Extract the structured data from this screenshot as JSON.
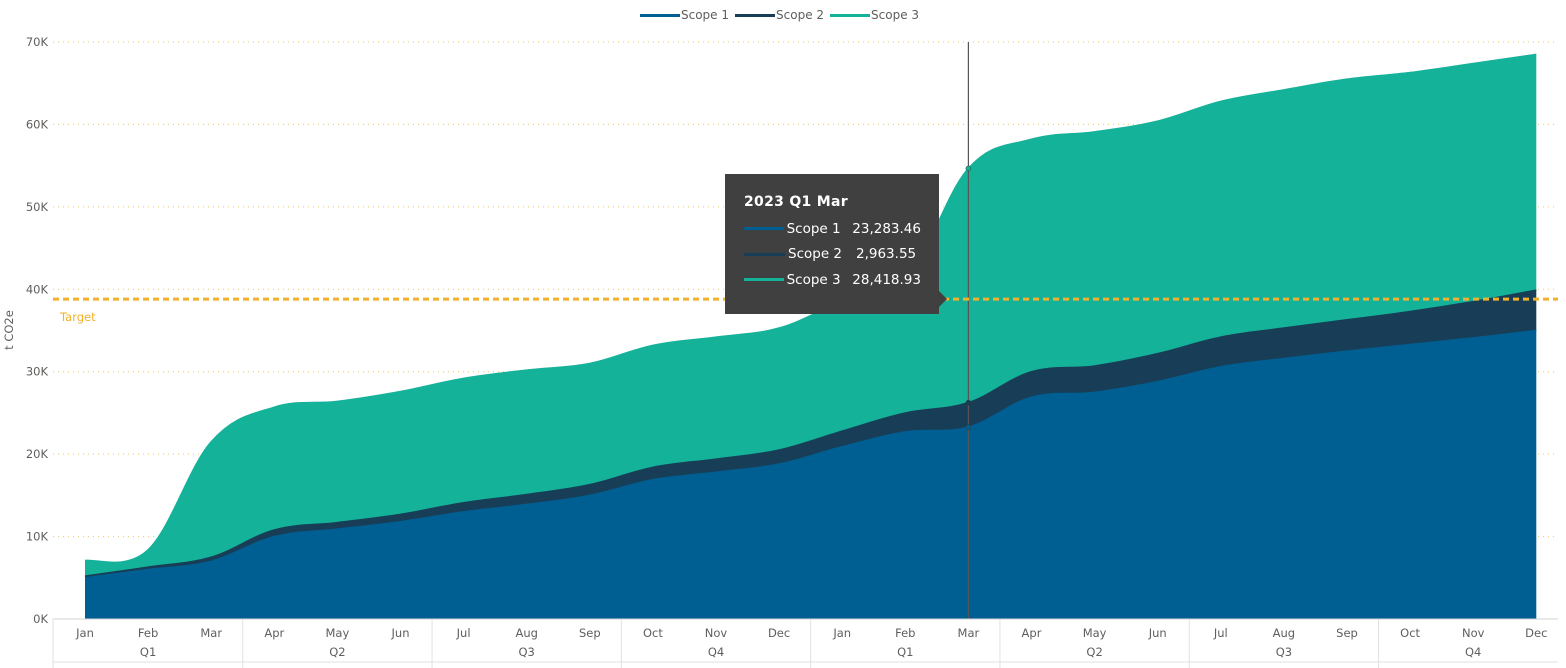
{
  "legend": [
    {
      "label": "Scope 1",
      "color": "#005f92"
    },
    {
      "label": "Scope 2",
      "color": "#173e56"
    },
    {
      "label": "Scope 3",
      "color": "#15b29a"
    }
  ],
  "tooltip": {
    "title": "2023 Q1 Mar",
    "rows": [
      {
        "name": "Scope 1",
        "value": "23,283.46",
        "color": "#005f92"
      },
      {
        "name": "Scope 2",
        "value": "2,963.55",
        "color": "#173e56"
      },
      {
        "name": "Scope 3",
        "value": "28,418.93",
        "color": "#15b29a"
      }
    ]
  },
  "chart_data": {
    "type": "area",
    "stacked": true,
    "ylabel": "t CO2e",
    "ylim": [
      0,
      70000
    ],
    "yticks": [
      0,
      10000,
      20000,
      30000,
      40000,
      50000,
      60000,
      70000
    ],
    "ytick_labels": [
      "0K",
      "10K",
      "20K",
      "30K",
      "40K",
      "50K",
      "60K",
      "70K"
    ],
    "grid": "horizontal dotted",
    "legend_position": "top-center",
    "categories": [
      "Jan",
      "Feb",
      "Mar",
      "Apr",
      "May",
      "Jun",
      "Jul",
      "Aug",
      "Sep",
      "Oct",
      "Nov",
      "Dec",
      "Jan",
      "Feb",
      "Mar",
      "Apr",
      "May",
      "Jun",
      "Jul",
      "Aug",
      "Sep",
      "Oct",
      "Nov",
      "Dec"
    ],
    "quarter_labels": [
      "Q1",
      "Q2",
      "Q3",
      "Q4",
      "Q1",
      "Q2",
      "Q3",
      "Q4"
    ],
    "series": [
      {
        "name": "Scope 1",
        "color": "#005f92",
        "values": [
          5000,
          6000,
          7000,
          10000,
          10900,
          11800,
          13000,
          13900,
          15000,
          16900,
          17800,
          18800,
          20900,
          22700,
          23283.46,
          26900,
          27500,
          28800,
          30600,
          31600,
          32500,
          33300,
          34100,
          35000
        ]
      },
      {
        "name": "Scope 2",
        "color": "#173e56",
        "values": [
          200,
          300,
          500,
          800,
          800,
          900,
          1100,
          1200,
          1300,
          1500,
          1600,
          1700,
          1900,
          2300,
          2963.55,
          3100,
          3200,
          3400,
          3600,
          3700,
          3800,
          4000,
          4400,
          4900
        ]
      },
      {
        "name": "Scope 3",
        "color": "#15b29a",
        "values": [
          1900,
          2100,
          14000,
          14900,
          14700,
          14900,
          15100,
          15100,
          14700,
          14800,
          14800,
          14800,
          15700,
          16000,
          28418.93,
          28200,
          28400,
          28200,
          28600,
          28900,
          29200,
          29000,
          28900,
          28600
        ]
      }
    ],
    "reference_line": {
      "label": "Target",
      "value": 38800,
      "color": "#f2b12c"
    },
    "highlight": {
      "category_index": 14
    }
  }
}
